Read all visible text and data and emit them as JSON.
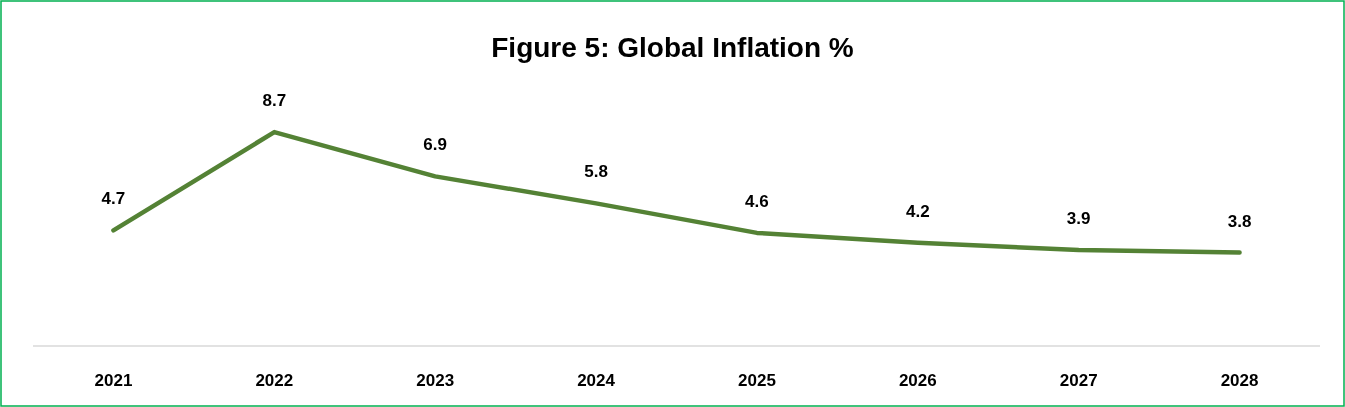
{
  "chart_data": {
    "type": "line",
    "title": "Figure 5: Global Inflation %",
    "categories": [
      "2021",
      "2022",
      "2023",
      "2024",
      "2025",
      "2026",
      "2027",
      "2028"
    ],
    "series": [
      {
        "color": "#548235",
        "values": [
          4.7,
          8.7,
          6.9,
          5.8,
          4.6,
          4.2,
          3.9,
          3.8
        ]
      }
    ],
    "data_labels": true,
    "tick_labels": "x",
    "marker": "none",
    "line_style": "solid"
  }
}
